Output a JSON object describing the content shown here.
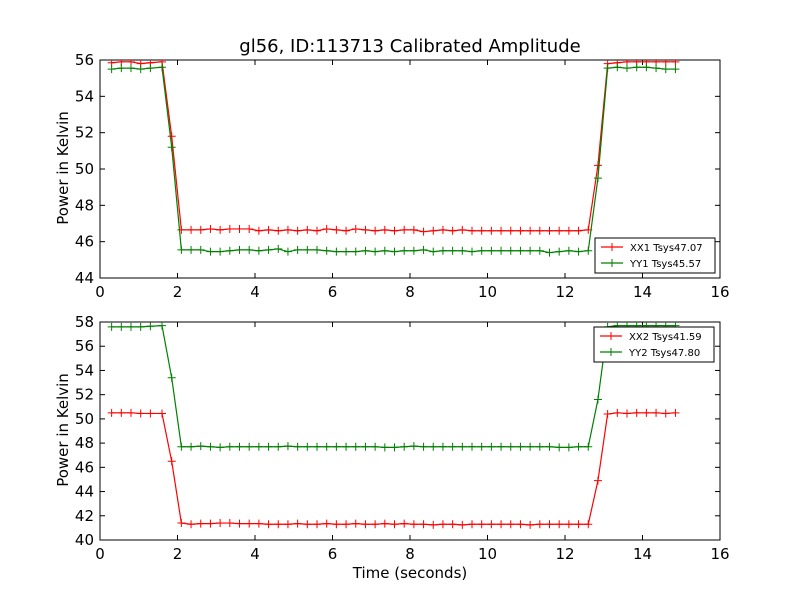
{
  "chart_data": [
    {
      "type": "line",
      "title": "gl56, ID:113713 Calibrated Amplitude",
      "xlabel": "",
      "ylabel": "Power in Kelvin",
      "xlim": [
        0,
        16
      ],
      "ylim": [
        44,
        56
      ],
      "xticks": [
        0,
        2,
        4,
        6,
        8,
        10,
        12,
        14,
        16
      ],
      "yticks": [
        44,
        46,
        48,
        50,
        52,
        54,
        56
      ],
      "grid": false,
      "legend_position": "lower-right",
      "x": [
        0.3,
        0.55,
        0.8,
        1.05,
        1.3,
        1.6,
        1.85,
        2.1,
        2.35,
        2.6,
        2.85,
        3.1,
        3.35,
        3.6,
        3.85,
        4.1,
        4.35,
        4.6,
        4.85,
        5.1,
        5.35,
        5.6,
        5.85,
        6.1,
        6.35,
        6.6,
        6.85,
        7.1,
        7.35,
        7.6,
        7.85,
        8.1,
        8.35,
        8.6,
        8.85,
        9.1,
        9.35,
        9.6,
        9.85,
        10.1,
        10.35,
        10.6,
        10.85,
        11.1,
        11.35,
        11.6,
        11.85,
        12.1,
        12.35,
        12.6,
        12.85,
        13.1,
        13.35,
        13.6,
        13.85,
        14.1,
        14.35,
        14.6,
        14.85
      ],
      "series": [
        {
          "name": "XX1 Tsys47.07",
          "color": "#ff0000",
          "values": [
            55.85,
            55.9,
            55.9,
            55.8,
            55.85,
            55.9,
            51.8,
            46.65,
            46.65,
            46.65,
            46.7,
            46.65,
            46.7,
            46.7,
            46.7,
            46.6,
            46.65,
            46.6,
            46.65,
            46.6,
            46.65,
            46.6,
            46.7,
            46.65,
            46.6,
            46.7,
            46.65,
            46.6,
            46.65,
            46.6,
            46.65,
            46.65,
            46.55,
            46.6,
            46.65,
            46.6,
            46.65,
            46.6,
            46.6,
            46.6,
            46.6,
            46.6,
            46.6,
            46.6,
            46.6,
            46.6,
            46.6,
            46.6,
            46.6,
            46.65,
            50.2,
            55.8,
            55.85,
            55.9,
            55.9,
            55.9,
            55.9,
            55.9,
            55.9
          ]
        },
        {
          "name": "YY1 Tsys45.57",
          "color": "#008000",
          "values": [
            55.5,
            55.55,
            55.55,
            55.5,
            55.55,
            55.6,
            51.2,
            45.55,
            45.55,
            45.55,
            45.45,
            45.45,
            45.5,
            45.55,
            45.55,
            45.5,
            45.55,
            45.6,
            45.45,
            45.55,
            45.55,
            45.55,
            45.5,
            45.45,
            45.45,
            45.45,
            45.5,
            45.45,
            45.5,
            45.45,
            45.5,
            45.5,
            45.55,
            45.45,
            45.5,
            45.5,
            45.5,
            45.45,
            45.5,
            45.5,
            45.5,
            45.5,
            45.5,
            45.5,
            45.5,
            45.4,
            45.45,
            45.5,
            45.45,
            45.5,
            49.5,
            55.55,
            55.6,
            55.55,
            55.6,
            55.6,
            55.55,
            55.5,
            55.5
          ]
        }
      ]
    },
    {
      "type": "line",
      "title": "",
      "xlabel": "Time (seconds)",
      "ylabel": "Power in Kelvin",
      "xlim": [
        0,
        16
      ],
      "ylim": [
        40,
        58
      ],
      "xticks": [
        0,
        2,
        4,
        6,
        8,
        10,
        12,
        14,
        16
      ],
      "yticks": [
        40,
        42,
        44,
        46,
        48,
        50,
        52,
        54,
        56,
        58
      ],
      "grid": false,
      "legend_position": "upper-right",
      "x": [
        0.3,
        0.55,
        0.8,
        1.05,
        1.3,
        1.6,
        1.85,
        2.1,
        2.35,
        2.6,
        2.85,
        3.1,
        3.35,
        3.6,
        3.85,
        4.1,
        4.35,
        4.6,
        4.85,
        5.1,
        5.35,
        5.6,
        5.85,
        6.1,
        6.35,
        6.6,
        6.85,
        7.1,
        7.35,
        7.6,
        7.85,
        8.1,
        8.35,
        8.6,
        8.85,
        9.1,
        9.35,
        9.6,
        9.85,
        10.1,
        10.35,
        10.6,
        10.85,
        11.1,
        11.35,
        11.6,
        11.85,
        12.1,
        12.35,
        12.6,
        12.85,
        13.1,
        13.35,
        13.6,
        13.85,
        14.1,
        14.35,
        14.6,
        14.85
      ],
      "series": [
        {
          "name": "XX2 Tsys41.59",
          "color": "#ff0000",
          "values": [
            50.5,
            50.5,
            50.5,
            50.45,
            50.45,
            50.45,
            46.5,
            41.4,
            41.3,
            41.35,
            41.35,
            41.4,
            41.4,
            41.35,
            41.35,
            41.35,
            41.3,
            41.3,
            41.3,
            41.35,
            41.3,
            41.3,
            41.35,
            41.3,
            41.3,
            41.35,
            41.3,
            41.3,
            41.35,
            41.3,
            41.35,
            41.3,
            41.3,
            41.25,
            41.3,
            41.3,
            41.25,
            41.3,
            41.3,
            41.3,
            41.3,
            41.3,
            41.3,
            41.25,
            41.3,
            41.3,
            41.3,
            41.3,
            41.3,
            41.3,
            44.9,
            50.4,
            50.5,
            50.45,
            50.5,
            50.5,
            50.5,
            50.45,
            50.5
          ]
        },
        {
          "name": "YY2 Tsys47.80",
          "color": "#008000",
          "values": [
            57.6,
            57.6,
            57.6,
            57.6,
            57.65,
            57.7,
            53.4,
            47.7,
            47.7,
            47.75,
            47.7,
            47.65,
            47.7,
            47.7,
            47.7,
            47.7,
            47.7,
            47.7,
            47.75,
            47.7,
            47.7,
            47.7,
            47.7,
            47.7,
            47.7,
            47.7,
            47.7,
            47.7,
            47.65,
            47.65,
            47.7,
            47.75,
            47.7,
            47.7,
            47.7,
            47.7,
            47.7,
            47.7,
            47.7,
            47.7,
            47.7,
            47.7,
            47.7,
            47.7,
            47.7,
            47.7,
            47.65,
            47.65,
            47.7,
            47.7,
            51.6,
            57.6,
            57.7,
            57.7,
            57.7,
            57.7,
            57.7,
            57.7,
            57.7
          ]
        }
      ]
    }
  ]
}
